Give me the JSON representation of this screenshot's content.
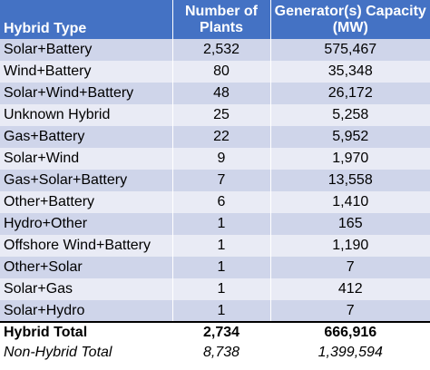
{
  "headers": {
    "type": "Hybrid Type",
    "plants": "Number of Plants",
    "capacity": "Generator(s) Capacity (MW)"
  },
  "rows": [
    {
      "type": "Solar+Battery",
      "plants": "2,532",
      "capacity": "575,467"
    },
    {
      "type": "Wind+Battery",
      "plants": "80",
      "capacity": "35,348"
    },
    {
      "type": "Solar+Wind+Battery",
      "plants": "48",
      "capacity": "26,172"
    },
    {
      "type": "Unknown Hybrid",
      "plants": "25",
      "capacity": "5,258"
    },
    {
      "type": "Gas+Battery",
      "plants": "22",
      "capacity": "5,952"
    },
    {
      "type": "Solar+Wind",
      "plants": "9",
      "capacity": "1,970"
    },
    {
      "type": "Gas+Solar+Battery",
      "plants": "7",
      "capacity": "13,558"
    },
    {
      "type": "Other+Battery",
      "plants": "6",
      "capacity": "1,410"
    },
    {
      "type": "Hydro+Other",
      "plants": "1",
      "capacity": "165"
    },
    {
      "type": "Offshore Wind+Battery",
      "plants": "1",
      "capacity": "1,190"
    },
    {
      "type": "Other+Solar",
      "plants": "1",
      "capacity": "7"
    },
    {
      "type": "Solar+Gas",
      "plants": "1",
      "capacity": "412"
    },
    {
      "type": "Solar+Hydro",
      "plants": "1",
      "capacity": "7"
    }
  ],
  "hybrid_total": {
    "type": "Hybrid Total",
    "plants": "2,734",
    "capacity": "666,916"
  },
  "non_hybrid_total": {
    "type": "Non-Hybrid Total",
    "plants": "8,738",
    "capacity": "1,399,594"
  },
  "colors": {
    "header": "#4472c4",
    "band_dark": "#cfd5ea",
    "band_light": "#e9ebf5"
  }
}
